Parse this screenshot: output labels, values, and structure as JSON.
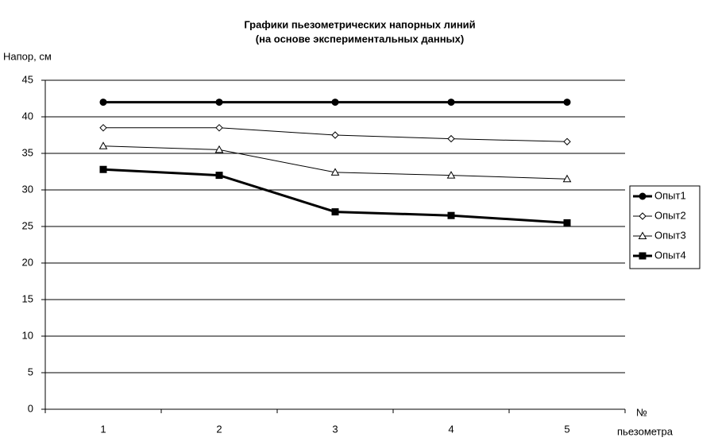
{
  "chart_data": {
    "type": "line",
    "title": [
      "Графики пьезометрических напорных линий",
      "(на основе экспериментальных данных)"
    ],
    "y_label": "Напор, см",
    "x_label": [
      "№",
      "пьезометра"
    ],
    "categories": [
      "1",
      "2",
      "3",
      "4",
      "5"
    ],
    "series": [
      {
        "name": "Опыт1",
        "color": "#000000",
        "marker": "circle",
        "line_width": 3,
        "values": [
          42,
          42,
          42,
          42,
          42
        ]
      },
      {
        "name": "Опыт2",
        "color": "#000000",
        "marker": "diamond",
        "line_width": 1,
        "values": [
          38.5,
          38.5,
          37.5,
          37,
          36.6
        ]
      },
      {
        "name": "Опыт3",
        "color": "#000000",
        "marker": "triangle",
        "line_width": 1,
        "values": [
          36,
          35.5,
          32.4,
          32,
          31.5
        ]
      },
      {
        "name": "Опыт4",
        "color": "#000000",
        "marker": "square",
        "line_width": 3,
        "values": [
          32.8,
          32,
          27,
          26.5,
          25.5
        ]
      }
    ],
    "ylim": [
      0,
      45
    ],
    "yticks": [
      0,
      5,
      10,
      15,
      20,
      25,
      30,
      35,
      40,
      45
    ],
    "grid": true,
    "legend": "right"
  }
}
